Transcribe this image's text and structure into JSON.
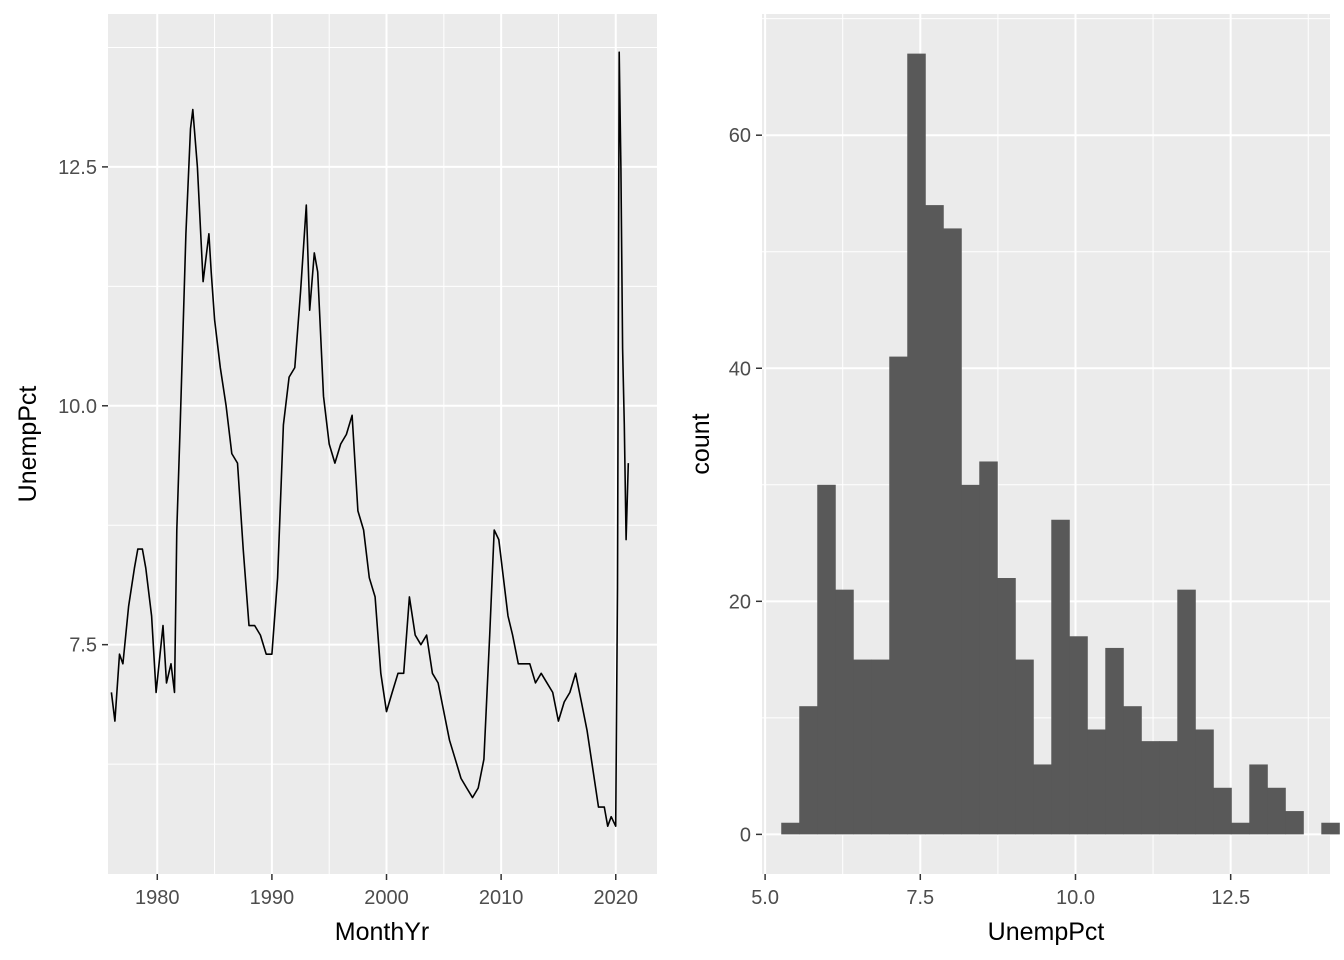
{
  "colors": {
    "panel_background": "#ebebeb",
    "grid_major": "#ffffff",
    "line": "#000000",
    "bar_fill": "#595959",
    "tick_text": "#4d4d4d"
  },
  "chart_data": [
    {
      "type": "line",
      "title": "",
      "xlabel": "MonthYr",
      "ylabel": "UnempPct",
      "xlim": [
        1975.7,
        2023.6
      ],
      "ylim": [
        5.1,
        14.1
      ],
      "x_ticks": [
        1980,
        1990,
        2000,
        2010,
        2020
      ],
      "x_tick_labels": [
        "1980",
        "1990",
        "2000",
        "2010",
        "2020"
      ],
      "y_ticks": [
        7.5,
        10.0,
        12.5
      ],
      "y_tick_labels": [
        "7.5",
        "10.0",
        "12.5"
      ],
      "grid": true,
      "x": [
        1976.0,
        1976.3,
        1976.7,
        1977.0,
        1977.5,
        1978.0,
        1978.3,
        1978.7,
        1979.0,
        1979.5,
        1979.9,
        1980.5,
        1980.8,
        1981.2,
        1981.5,
        1981.7,
        1982.0,
        1982.5,
        1982.9,
        1983.1,
        1983.5,
        1984.0,
        1984.5,
        1984.7,
        1985.0,
        1985.5,
        1986.0,
        1986.5,
        1987.0,
        1987.5,
        1988.0,
        1988.5,
        1989.0,
        1989.5,
        1990.0,
        1990.5,
        1991.0,
        1991.5,
        1992.0,
        1992.5,
        1993.0,
        1993.3,
        1993.7,
        1994.0,
        1994.5,
        1995.0,
        1995.5,
        1996.0,
        1996.5,
        1997.0,
        1997.5,
        1998.0,
        1998.5,
        1999.0,
        1999.5,
        2000.0,
        2000.5,
        2001.0,
        2001.5,
        2002.0,
        2002.5,
        2003.0,
        2003.5,
        2004.0,
        2004.5,
        2005.0,
        2005.5,
        2006.0,
        2006.5,
        2007.0,
        2007.5,
        2008.0,
        2008.5,
        2009.0,
        2009.4,
        2009.8,
        2010.2,
        2010.6,
        2011.0,
        2011.5,
        2012.0,
        2012.5,
        2013.0,
        2013.5,
        2014.0,
        2014.5,
        2015.0,
        2015.5,
        2016.0,
        2016.5,
        2017.0,
        2017.5,
        2018.0,
        2018.5,
        2019.0,
        2019.3,
        2019.6,
        2020.0,
        2020.15,
        2020.3,
        2020.45,
        2020.6,
        2020.75,
        2020.9,
        2021.1
      ],
      "y": [
        7.0,
        6.7,
        7.4,
        7.3,
        7.9,
        8.3,
        8.5,
        8.5,
        8.3,
        7.8,
        7.0,
        7.7,
        7.1,
        7.3,
        7.0,
        8.7,
        9.8,
        11.8,
        12.9,
        13.1,
        12.5,
        11.3,
        11.8,
        11.4,
        10.9,
        10.4,
        10.0,
        9.5,
        9.4,
        8.5,
        7.7,
        7.7,
        7.6,
        7.4,
        7.4,
        8.2,
        9.8,
        10.3,
        10.4,
        11.2,
        12.1,
        11.0,
        11.6,
        11.4,
        10.1,
        9.6,
        9.4,
        9.6,
        9.7,
        9.9,
        8.9,
        8.7,
        8.2,
        8.0,
        7.2,
        6.8,
        7.0,
        7.2,
        7.2,
        8.0,
        7.6,
        7.5,
        7.6,
        7.2,
        7.1,
        6.8,
        6.5,
        6.3,
        6.1,
        6.0,
        5.9,
        6.0,
        6.3,
        7.6,
        8.7,
        8.6,
        8.2,
        7.8,
        7.6,
        7.3,
        7.3,
        7.3,
        7.1,
        7.2,
        7.1,
        7.0,
        6.7,
        6.9,
        7.0,
        7.2,
        6.9,
        6.6,
        6.2,
        5.8,
        5.8,
        5.6,
        5.7,
        5.6,
        8.1,
        13.7,
        12.5,
        10.6,
        9.8,
        8.6,
        9.4
      ]
    },
    {
      "type": "bar",
      "title": "",
      "xlabel": "UnempPct",
      "ylabel": "count",
      "xlim": [
        4.95,
        14.1
      ],
      "ylim": [
        -3.4,
        70.4
      ],
      "x_ticks": [
        5.0,
        7.5,
        10.0,
        12.5
      ],
      "x_tick_labels": [
        "5.0",
        "7.5",
        "10.0",
        "12.5"
      ],
      "y_ticks": [
        0,
        20,
        40,
        60
      ],
      "y_tick_labels": [
        "0",
        "20",
        "40",
        "60"
      ],
      "grid": true,
      "bin_width": 0.29,
      "bin_start": 5.26,
      "values": [
        1,
        11,
        30,
        21,
        15,
        15,
        41,
        67,
        54,
        52,
        30,
        32,
        22,
        15,
        6,
        27,
        17,
        9,
        16,
        11,
        8,
        8,
        21,
        9,
        4,
        1,
        6,
        4,
        2,
        0,
        1
      ]
    }
  ]
}
